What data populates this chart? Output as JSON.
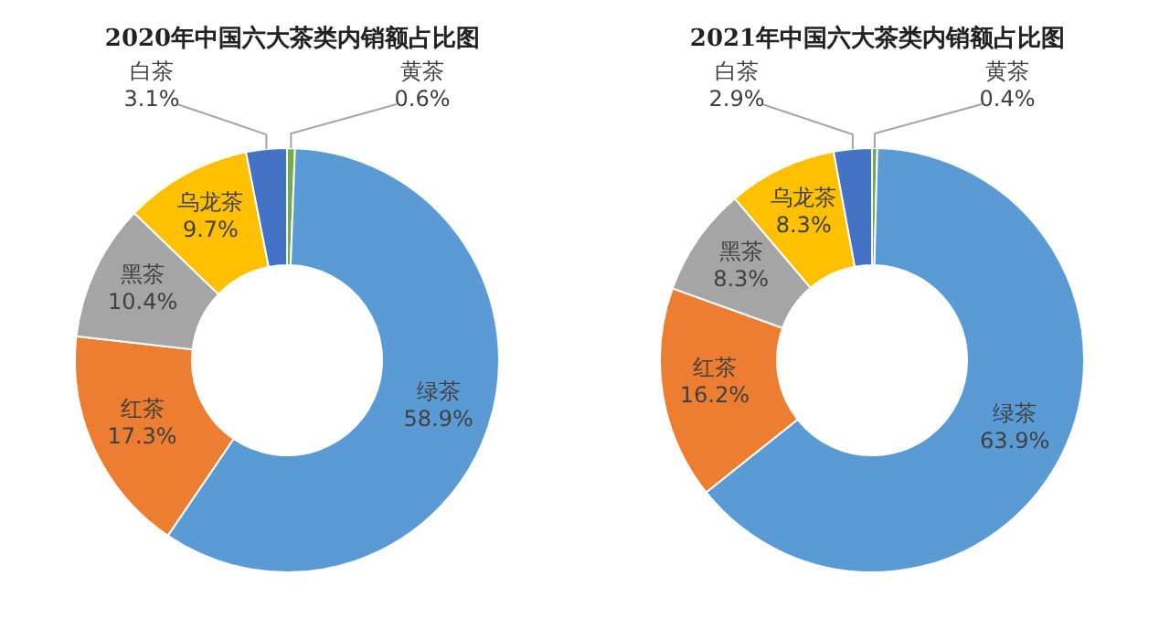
{
  "chart_data": [
    {
      "type": "donut",
      "title": "2020年中国六大茶类内销额占比图",
      "categories": [
        "黄茶",
        "绿茶",
        "红茶",
        "黑茶",
        "乌龙茶",
        "白茶"
      ],
      "values": [
        0.6,
        58.9,
        17.3,
        10.4,
        9.7,
        3.1
      ],
      "value_labels": [
        "0.6%",
        "58.9%",
        "17.3%",
        "10.4%",
        "9.7%",
        "3.1%"
      ],
      "colors": [
        "#70ad47",
        "#5b9bd5",
        "#ed7d31",
        "#a5a5a5",
        "#ffc000",
        "#4472c4"
      ],
      "legend": false
    },
    {
      "type": "donut",
      "title": "2021年中国六大茶类内销额占比图",
      "categories": [
        "黄茶",
        "绿茶",
        "红茶",
        "黑茶",
        "乌龙茶",
        "白茶"
      ],
      "values": [
        0.4,
        63.9,
        16.2,
        8.3,
        8.3,
        2.9
      ],
      "value_labels": [
        "0.4%",
        "63.9%",
        "16.2%",
        "8.3%",
        "8.3%",
        "2.9%"
      ],
      "colors": [
        "#70ad47",
        "#5b9bd5",
        "#ed7d31",
        "#a5a5a5",
        "#ffc000",
        "#4472c4"
      ],
      "legend": false
    }
  ]
}
